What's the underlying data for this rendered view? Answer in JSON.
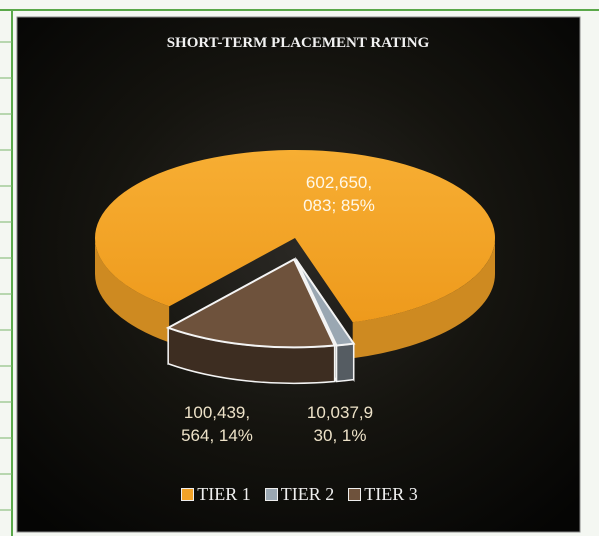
{
  "chart_data": {
    "type": "pie3d",
    "title": "SHORT-TERM PLACEMENT RATING",
    "categories": [
      "TIER 1",
      "TIER 2",
      "TIER 3"
    ],
    "values": [
      602650083,
      10037930,
      100439564
    ],
    "value_labels": [
      "602,650,083; 85%",
      "10,037,930, 1%",
      "100,439,564, 14%"
    ],
    "colors": [
      "#f2a227",
      "#9aa7b2",
      "#6e523c"
    ],
    "legend": "bottom"
  }
}
